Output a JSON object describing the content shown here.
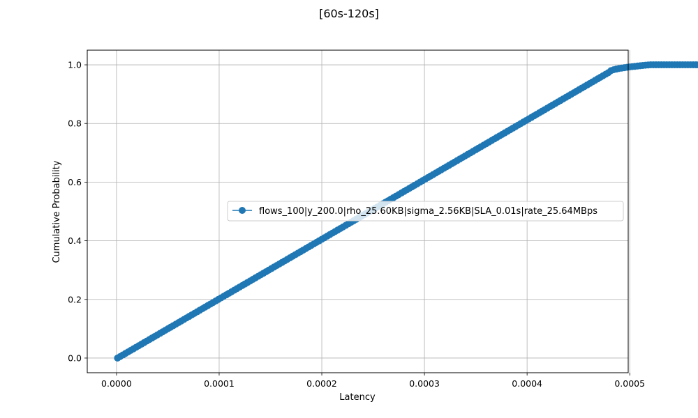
{
  "chart_data": {
    "type": "line",
    "title": "[60s-120s]",
    "xlabel": "Latency",
    "ylabel": "Cumulative Probability",
    "xlim": [
      -2.85e-05,
      0.0004985
    ],
    "ylim": [
      -0.05,
      1.05
    ],
    "xticks": [
      0.0,
      0.0001,
      0.0002,
      0.0003,
      0.0004,
      0.0005
    ],
    "xtick_labels": [
      "0.0000",
      "0.0001",
      "0.0002",
      "0.0003",
      "0.0004",
      "0.0005"
    ],
    "yticks": [
      0.0,
      0.2,
      0.4,
      0.6,
      0.8,
      1.0
    ],
    "ytick_labels": [
      "0.0",
      "0.2",
      "0.4",
      "0.6",
      "0.8",
      "1.0"
    ],
    "grid": true,
    "legend": "center-right",
    "series": [
      {
        "name": "flows_100|y_200.0|rho_25.60KB|sigma_2.56KB|SLA_0.01s|rate_25.64MBps",
        "color": "#1f77b4",
        "marker": "circle",
        "x_start": 1e-06,
        "x_end": 0.000567,
        "y_start": 0.0,
        "y_end": 1.0
      }
    ]
  }
}
